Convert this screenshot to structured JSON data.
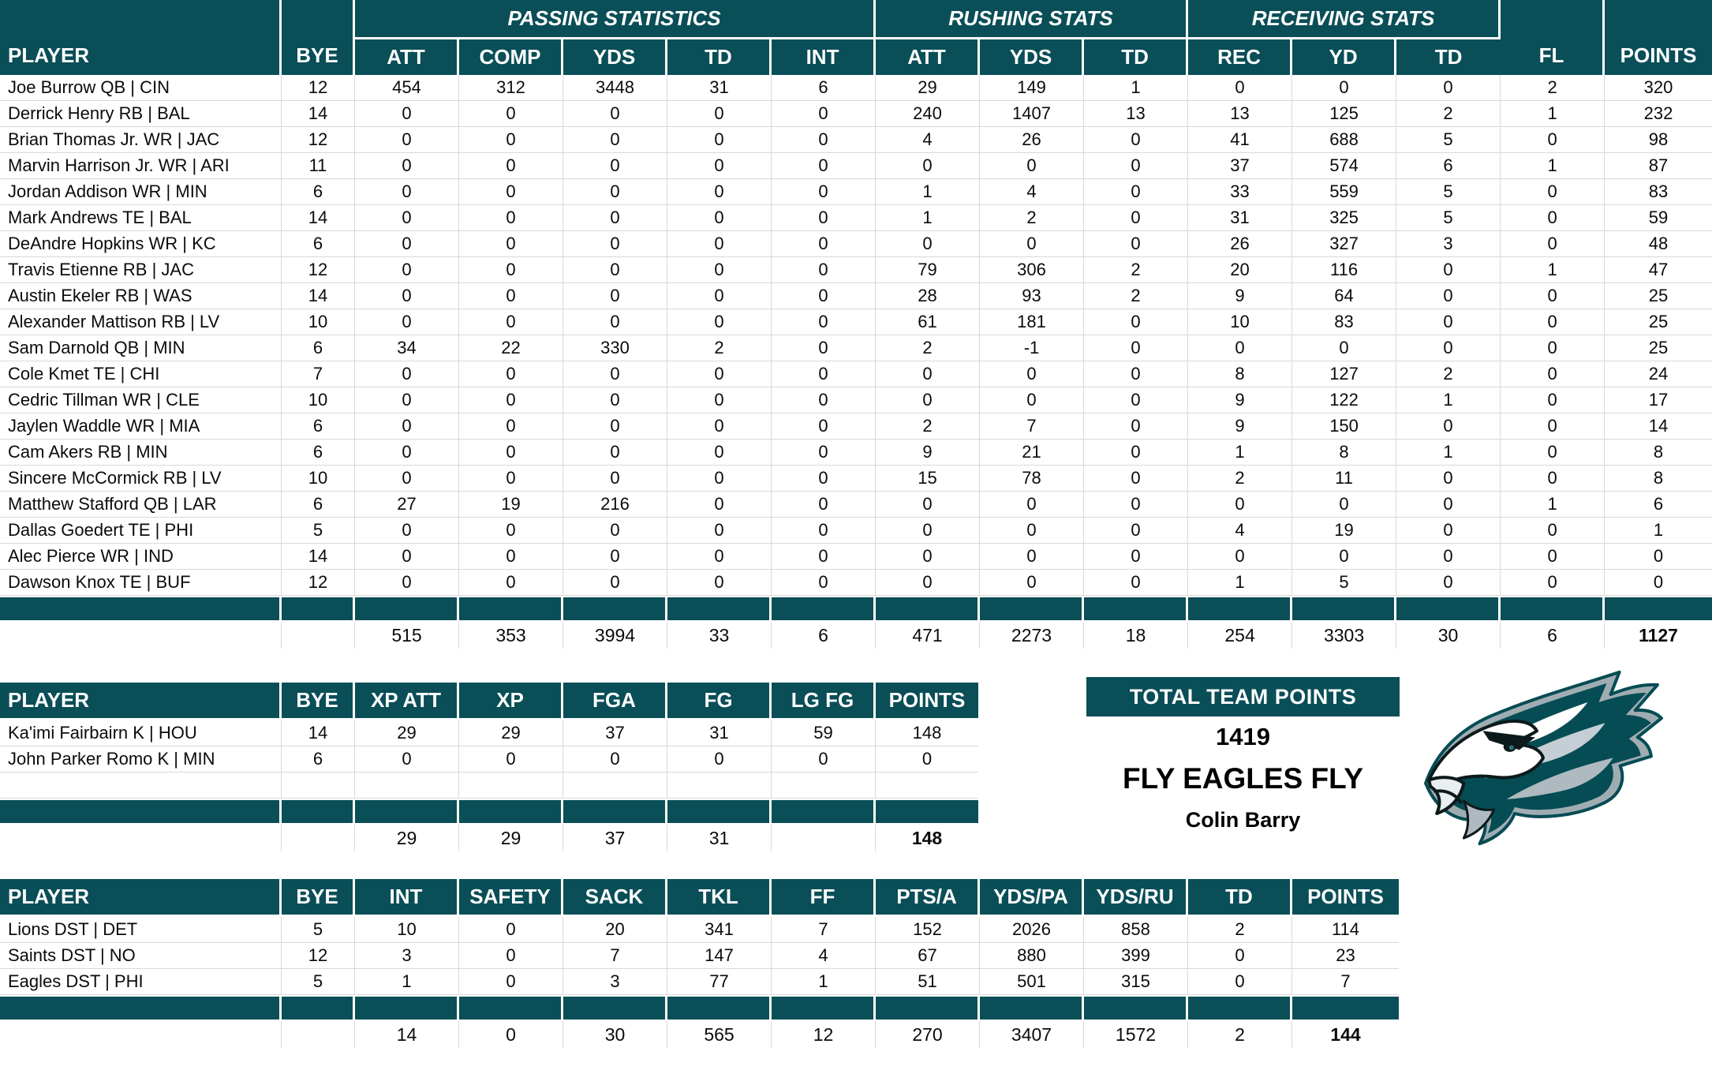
{
  "theme": {
    "header_bg": "#0A4E57",
    "grid_line": "#D9D9D9",
    "header_text": "#FFFFFF",
    "body_text": "#000000"
  },
  "main_table": {
    "group_headers": {
      "passing": "PASSING STATISTICS",
      "rushing": "RUSHING STATS",
      "receiving": "RECEIVING STATS"
    },
    "columns": [
      "PLAYER",
      "BYE",
      "ATT",
      "COMP",
      "YDS",
      "TD",
      "INT",
      "ATT",
      "YDS",
      "TD",
      "REC",
      "YD",
      "TD",
      "FL",
      "POINTS"
    ],
    "rows": [
      [
        "Joe Burrow QB | CIN",
        "12",
        "454",
        "312",
        "3448",
        "31",
        "6",
        "29",
        "149",
        "1",
        "0",
        "0",
        "0",
        "2",
        "320"
      ],
      [
        "Derrick Henry RB | BAL",
        "14",
        "0",
        "0",
        "0",
        "0",
        "0",
        "240",
        "1407",
        "13",
        "13",
        "125",
        "2",
        "1",
        "232"
      ],
      [
        "Brian Thomas Jr. WR | JAC",
        "12",
        "0",
        "0",
        "0",
        "0",
        "0",
        "4",
        "26",
        "0",
        "41",
        "688",
        "5",
        "0",
        "98"
      ],
      [
        "Marvin Harrison Jr. WR | ARI",
        "11",
        "0",
        "0",
        "0",
        "0",
        "0",
        "0",
        "0",
        "0",
        "37",
        "574",
        "6",
        "1",
        "87"
      ],
      [
        "Jordan Addison WR | MIN",
        "6",
        "0",
        "0",
        "0",
        "0",
        "0",
        "1",
        "4",
        "0",
        "33",
        "559",
        "5",
        "0",
        "83"
      ],
      [
        "Mark Andrews TE | BAL",
        "14",
        "0",
        "0",
        "0",
        "0",
        "0",
        "1",
        "2",
        "0",
        "31",
        "325",
        "5",
        "0",
        "59"
      ],
      [
        "DeAndre Hopkins WR | KC",
        "6",
        "0",
        "0",
        "0",
        "0",
        "0",
        "0",
        "0",
        "0",
        "26",
        "327",
        "3",
        "0",
        "48"
      ],
      [
        "Travis Etienne RB | JAC",
        "12",
        "0",
        "0",
        "0",
        "0",
        "0",
        "79",
        "306",
        "2",
        "20",
        "116",
        "0",
        "1",
        "47"
      ],
      [
        "Austin Ekeler RB | WAS",
        "14",
        "0",
        "0",
        "0",
        "0",
        "0",
        "28",
        "93",
        "2",
        "9",
        "64",
        "0",
        "0",
        "25"
      ],
      [
        "Alexander Mattison RB | LV",
        "10",
        "0",
        "0",
        "0",
        "0",
        "0",
        "61",
        "181",
        "0",
        "10",
        "83",
        "0",
        "0",
        "25"
      ],
      [
        "Sam Darnold QB | MIN",
        "6",
        "34",
        "22",
        "330",
        "2",
        "0",
        "2",
        "-1",
        "0",
        "0",
        "0",
        "0",
        "0",
        "25"
      ],
      [
        "Cole Kmet TE | CHI",
        "7",
        "0",
        "0",
        "0",
        "0",
        "0",
        "0",
        "0",
        "0",
        "8",
        "127",
        "2",
        "0",
        "24"
      ],
      [
        "Cedric Tillman WR | CLE",
        "10",
        "0",
        "0",
        "0",
        "0",
        "0",
        "0",
        "0",
        "0",
        "9",
        "122",
        "1",
        "0",
        "17"
      ],
      [
        "Jaylen Waddle WR | MIA",
        "6",
        "0",
        "0",
        "0",
        "0",
        "0",
        "2",
        "7",
        "0",
        "9",
        "150",
        "0",
        "0",
        "14"
      ],
      [
        "Cam Akers RB | MIN",
        "6",
        "0",
        "0",
        "0",
        "0",
        "0",
        "9",
        "21",
        "0",
        "1",
        "8",
        "1",
        "0",
        "8"
      ],
      [
        "Sincere McCormick RB | LV",
        "10",
        "0",
        "0",
        "0",
        "0",
        "0",
        "15",
        "78",
        "0",
        "2",
        "11",
        "0",
        "0",
        "8"
      ],
      [
        "Matthew Stafford QB | LAR",
        "6",
        "27",
        "19",
        "216",
        "0",
        "0",
        "0",
        "0",
        "0",
        "0",
        "0",
        "0",
        "1",
        "6"
      ],
      [
        "Dallas Goedert TE | PHI",
        "5",
        "0",
        "0",
        "0",
        "0",
        "0",
        "0",
        "0",
        "0",
        "4",
        "19",
        "0",
        "0",
        "1"
      ],
      [
        "Alec Pierce WR | IND",
        "14",
        "0",
        "0",
        "0",
        "0",
        "0",
        "0",
        "0",
        "0",
        "0",
        "0",
        "0",
        "0",
        "0"
      ],
      [
        "Dawson Knox TE | BUF",
        "12",
        "0",
        "0",
        "0",
        "0",
        "0",
        "0",
        "0",
        "0",
        "1",
        "5",
        "0",
        "0",
        "0"
      ]
    ],
    "totals": [
      "",
      "",
      "515",
      "353",
      "3994",
      "33",
      "6",
      "471",
      "2273",
      "18",
      "254",
      "3303",
      "30",
      "6",
      "1127"
    ]
  },
  "kicker_table": {
    "columns": [
      "PLAYER",
      "BYE",
      "XP ATT",
      "XP",
      "FGA",
      "FG",
      "LG FG",
      "POINTS"
    ],
    "rows": [
      [
        "Ka'imi Fairbairn K | HOU",
        "14",
        "29",
        "29",
        "37",
        "31",
        "59",
        "148"
      ],
      [
        "John Parker Romo K | MIN",
        "6",
        "0",
        "0",
        "0",
        "0",
        "0",
        "0"
      ]
    ],
    "has_empty_row": true,
    "totals": [
      "",
      "",
      "29",
      "29",
      "37",
      "31",
      "",
      "148"
    ]
  },
  "dst_table": {
    "columns": [
      "PLAYER",
      "BYE",
      "INT",
      "SAFETY",
      "SACK",
      "TKL",
      "FF",
      "PTS/A",
      "YDS/PA",
      "YDS/RU",
      "TD",
      "POINTS"
    ],
    "rows": [
      [
        "Lions DST | DET",
        "5",
        "10",
        "0",
        "20",
        "341",
        "7",
        "152",
        "2026",
        "858",
        "2",
        "114"
      ],
      [
        "Saints DST | NO",
        "12",
        "3",
        "0",
        "7",
        "147",
        "4",
        "67",
        "880",
        "399",
        "0",
        "23"
      ],
      [
        "Eagles DST | PHI",
        "5",
        "1",
        "0",
        "3",
        "77",
        "1",
        "51",
        "501",
        "315",
        "0",
        "7"
      ]
    ],
    "has_empty_row": false,
    "totals": [
      "",
      "",
      "14",
      "0",
      "30",
      "565",
      "12",
      "270",
      "3407",
      "1572",
      "2",
      "144"
    ]
  },
  "team_summary": {
    "title": "TOTAL TEAM POINTS",
    "total_points": "1419",
    "motto": "FLY EAGLES FLY",
    "owner": "Colin Barry"
  },
  "logo": {
    "name": "philadelphia-eagles-logo",
    "colors": {
      "midnight_green": "#064C54",
      "silver": "#A5ACAF",
      "light_silver": "#C4CED4",
      "black": "#0D1A1C",
      "white": "#FFFFFF"
    }
  }
}
